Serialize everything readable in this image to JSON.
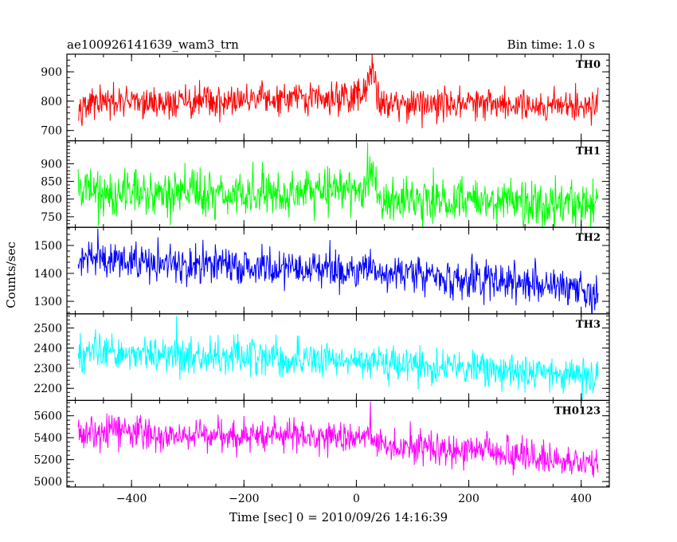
{
  "header": {
    "file_label": "ae100926141639_wam3_trn",
    "bin_time_label": "Bin time: 1.0 s"
  },
  "chart_data": {
    "type": "line",
    "xlabel": "Time [sec] 0 = 2010/09/26 14:16:39",
    "ylabel": "Counts/sec",
    "xlim": [
      -515,
      450
    ],
    "x_range": [
      -495,
      430
    ],
    "x_ticks": [
      -400,
      -200,
      0,
      200,
      400
    ],
    "bin_time_s": 1.0,
    "grid": false,
    "legend": "none",
    "series": [
      {
        "name": "TH0",
        "color": "#ff0000",
        "ylim": [
          665,
          960
        ],
        "y_ticks": [
          700,
          800,
          900
        ],
        "trend": [
          [
            -495,
            790
          ],
          [
            -300,
            797
          ],
          [
            -100,
            806
          ],
          [
            0,
            818
          ],
          [
            20,
            850
          ],
          [
            28,
            905
          ],
          [
            40,
            795
          ],
          [
            200,
            792
          ],
          [
            430,
            787
          ]
        ],
        "noise_sd": 28,
        "peak": [
          28,
          960
        ]
      },
      {
        "name": "TH1",
        "color": "#00ff00",
        "ylim": [
          720,
          965
        ],
        "y_ticks": [
          750,
          800,
          850,
          900
        ],
        "trend": [
          [
            -495,
            818
          ],
          [
            -300,
            818
          ],
          [
            -100,
            815
          ],
          [
            0,
            820
          ],
          [
            20,
            848
          ],
          [
            28,
            875
          ],
          [
            40,
            800
          ],
          [
            200,
            795
          ],
          [
            430,
            785
          ]
        ],
        "noise_sd": 32,
        "peak": [
          20,
          960
        ]
      },
      {
        "name": "TH2",
        "color": "#0000ff",
        "ylim": [
          1255,
          1565
        ],
        "y_ticks": [
          1300,
          1400,
          1500
        ],
        "trend": [
          [
            -495,
            1455
          ],
          [
            -300,
            1430
          ],
          [
            -100,
            1415
          ],
          [
            0,
            1412
          ],
          [
            100,
            1395
          ],
          [
            300,
            1365
          ],
          [
            430,
            1340
          ]
        ],
        "noise_sd": 35,
        "peak": [
          -460,
          1560
        ]
      },
      {
        "name": "TH3",
        "color": "#00ffff",
        "ylim": [
          2140,
          2570
        ],
        "y_ticks": [
          2200,
          2300,
          2400,
          2500
        ],
        "trend": [
          [
            -495,
            2375
          ],
          [
            -300,
            2358
          ],
          [
            -100,
            2345
          ],
          [
            0,
            2333
          ],
          [
            200,
            2300
          ],
          [
            430,
            2250
          ]
        ],
        "noise_sd": 45,
        "peak": [
          -320,
          2560
        ]
      },
      {
        "name": "TH0123",
        "color": "#ff00ff",
        "ylim": [
          4950,
          5740
        ],
        "y_ticks": [
          5000,
          5200,
          5400,
          5600
        ],
        "trend": [
          [
            -495,
            5450
          ],
          [
            -300,
            5430
          ],
          [
            -100,
            5410
          ],
          [
            0,
            5390
          ],
          [
            20,
            5400
          ],
          [
            28,
            5440
          ],
          [
            40,
            5330
          ],
          [
            200,
            5290
          ],
          [
            430,
            5160
          ]
        ],
        "noise_sd": 75,
        "peak": [
          25,
          5730
        ]
      }
    ]
  }
}
